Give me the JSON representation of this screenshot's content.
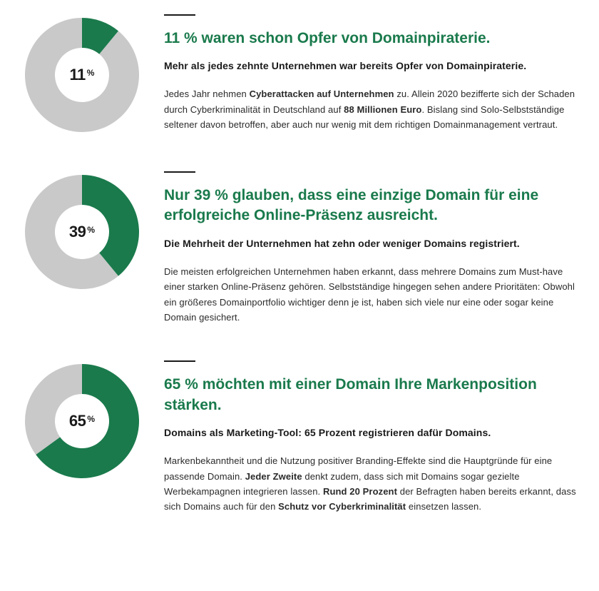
{
  "colors": {
    "accent": "#1a7a4c",
    "ring_bg": "#c9c9c9",
    "text": "#1a1a1a",
    "headline": "#1a7a4c"
  },
  "donut": {
    "outer_r": 80,
    "inner_r": 38,
    "start_angle_deg": 0
  },
  "stats": [
    {
      "percent": 11,
      "value_label": "11",
      "headline": "11 % waren schon Opfer von Domainpiraterie.",
      "subhead": "Mehr als jedes zehnte Unternehmen war bereits Opfer von Domain­piraterie.",
      "body_html": "Jedes Jahr nehmen <strong>Cyberattacken auf Unternehmen</strong> zu. Allein 2020 bezifferte sich der Schaden durch Cyberkriminalität in Deutschland auf <strong>88 Millionen Euro</strong>. Bislang sind Solo-Selbstständige seltener davon betroffen, aber auch nur wenig mit dem richtigen Domainmanagement vertraut."
    },
    {
      "percent": 39,
      "value_label": "39",
      "headline": "Nur 39 % glauben, dass eine einzige Domain für eine erfolgreiche Online-Präsenz ausreicht.",
      "subhead": "Die Mehrheit der Unternehmen hat zehn oder weniger Domains registriert.",
      "body_html": "Die meisten erfolgreichen Unternehmen haben erkannt, dass mehrere Domains zum Must-have einer starken Online-Präsenz gehören. Selbstständige hingegen sehen andere Prioritäten: Obwohl ein größeres Domainportfolio wichtiger denn je ist, haben sich viele nur eine oder sogar keine Domain gesichert."
    },
    {
      "percent": 65,
      "value_label": "65",
      "headline": "65 % möchten mit einer Domain Ihre Marken­position stärken.",
      "subhead": "Domains als Marketing-Tool: 65 Prozent registrieren dafür Domains.",
      "body_html": "Markenbekanntheit und die Nutzung positiver Branding-Effekte sind die Haupt­gründe für eine passende Domain. <strong>Jeder Zweite</strong> denkt zudem, dass sich mit Domains sogar gezielte Werbekampagnen integrieren lassen. <strong>Rund 20 Prozent</strong> der Befragten haben bereits erkannt, dass sich Domains auch für den <strong>Schutz vor Cyberkriminalität</strong> einsetzen lassen."
    }
  ]
}
